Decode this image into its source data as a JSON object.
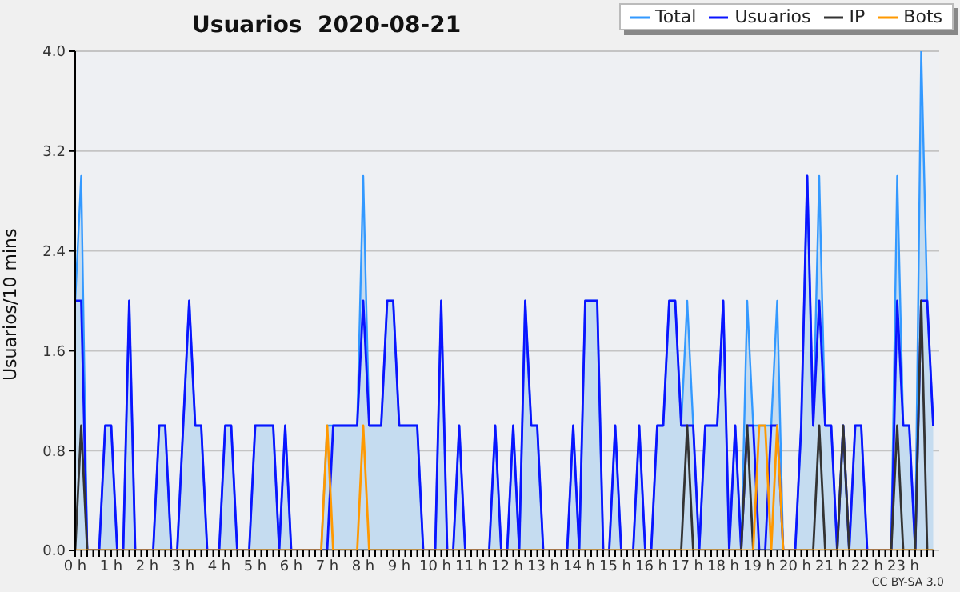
{
  "chart_data": {
    "type": "line",
    "title": "Usuarios  2020-08-21",
    "ylabel": "Usuarios/10 mins",
    "annotations": [
      "CC BY-SA 3.0"
    ],
    "categories": [
      "0 h",
      null,
      null,
      null,
      null,
      null,
      "1 h",
      null,
      null,
      null,
      null,
      null,
      "2 h",
      null,
      null,
      null,
      null,
      null,
      "3 h",
      null,
      null,
      null,
      null,
      null,
      "4 h",
      null,
      null,
      null,
      null,
      null,
      "5 h",
      null,
      null,
      null,
      null,
      null,
      "6 h",
      null,
      null,
      null,
      null,
      null,
      "7 h",
      null,
      null,
      null,
      null,
      null,
      "8 h",
      null,
      null,
      null,
      null,
      null,
      "9 h",
      null,
      null,
      null,
      null,
      null,
      "10 h",
      null,
      null,
      null,
      null,
      null,
      "11 h",
      null,
      null,
      null,
      null,
      null,
      "12 h",
      null,
      null,
      null,
      null,
      null,
      "13 h",
      null,
      null,
      null,
      null,
      null,
      "14 h",
      null,
      null,
      null,
      null,
      null,
      "15 h",
      null,
      null,
      null,
      null,
      null,
      "16 h",
      null,
      null,
      null,
      null,
      null,
      "17 h",
      null,
      null,
      null,
      null,
      null,
      "18 h",
      null,
      null,
      null,
      null,
      null,
      "19 h",
      null,
      null,
      null,
      null,
      null,
      "20 h",
      null,
      null,
      null,
      null,
      null,
      "21 h",
      null,
      null,
      null,
      null,
      null,
      "22 h",
      null,
      null,
      null,
      null,
      null,
      "23 h",
      null,
      null,
      null,
      null,
      null
    ],
    "series": [
      {
        "name": "Total",
        "type": "area",
        "color": "#3399ff",
        "values": [
          2,
          3,
          0,
          0,
          0,
          1,
          1,
          0,
          0,
          2,
          0,
          0,
          0,
          0,
          1,
          1,
          0,
          0,
          1,
          2,
          1,
          1,
          0,
          0,
          0,
          1,
          1,
          0,
          0,
          0,
          1,
          1,
          1,
          1,
          0,
          1,
          0,
          0,
          0,
          0,
          0,
          0,
          1,
          1,
          1,
          1,
          1,
          1,
          3,
          1,
          1,
          1,
          2,
          2,
          1,
          1,
          1,
          1,
          0,
          0,
          0,
          2,
          0,
          0,
          1,
          0,
          0,
          0,
          0,
          0,
          1,
          0,
          0,
          1,
          0,
          2,
          1,
          1,
          0,
          0,
          0,
          0,
          0,
          1,
          0,
          2,
          2,
          2,
          0,
          0,
          1,
          0,
          0,
          0,
          1,
          0,
          0,
          1,
          1,
          2,
          2,
          1,
          2,
          1,
          0,
          1,
          1,
          1,
          2,
          0,
          1,
          0,
          2,
          1,
          1,
          1,
          1,
          2,
          0,
          0,
          0,
          1,
          3,
          1,
          3,
          1,
          1,
          0,
          1,
          0,
          1,
          1,
          0,
          0,
          0,
          0,
          0,
          3,
          1,
          1,
          0,
          4,
          2,
          1
        ]
      },
      {
        "name": "Usuarios",
        "color": "#0a14ff",
        "values": [
          2,
          2,
          0,
          0,
          0,
          1,
          1,
          0,
          0,
          2,
          0,
          0,
          0,
          0,
          1,
          1,
          0,
          0,
          1,
          2,
          1,
          1,
          0,
          0,
          0,
          1,
          1,
          0,
          0,
          0,
          1,
          1,
          1,
          1,
          0,
          1,
          0,
          0,
          0,
          0,
          0,
          0,
          0,
          1,
          1,
          1,
          1,
          1,
          2,
          1,
          1,
          1,
          2,
          2,
          1,
          1,
          1,
          1,
          0,
          0,
          0,
          2,
          0,
          0,
          1,
          0,
          0,
          0,
          0,
          0,
          1,
          0,
          0,
          1,
          0,
          2,
          1,
          1,
          0,
          0,
          0,
          0,
          0,
          1,
          0,
          2,
          2,
          2,
          0,
          0,
          1,
          0,
          0,
          0,
          1,
          0,
          0,
          1,
          1,
          2,
          2,
          1,
          1,
          1,
          0,
          1,
          1,
          1,
          2,
          0,
          1,
          0,
          1,
          1,
          0,
          0,
          1,
          1,
          0,
          0,
          0,
          1,
          3,
          1,
          2,
          1,
          1,
          0,
          1,
          0,
          1,
          1,
          0,
          0,
          0,
          0,
          0,
          2,
          1,
          1,
          0,
          2,
          2,
          1
        ]
      },
      {
        "name": "IP",
        "color": "#333333",
        "values": [
          0,
          1,
          0,
          0,
          0,
          0,
          0,
          0,
          0,
          0,
          0,
          0,
          0,
          0,
          0,
          0,
          0,
          0,
          0,
          0,
          0,
          0,
          0,
          0,
          0,
          0,
          0,
          0,
          0,
          0,
          0,
          0,
          0,
          0,
          0,
          0,
          0,
          0,
          0,
          0,
          0,
          0,
          0,
          0,
          0,
          0,
          0,
          0,
          0,
          0,
          0,
          0,
          0,
          0,
          0,
          0,
          0,
          0,
          0,
          0,
          0,
          0,
          0,
          0,
          0,
          0,
          0,
          0,
          0,
          0,
          0,
          0,
          0,
          0,
          0,
          0,
          0,
          0,
          0,
          0,
          0,
          0,
          0,
          0,
          0,
          0,
          0,
          0,
          0,
          0,
          0,
          0,
          0,
          0,
          0,
          0,
          0,
          0,
          0,
          0,
          0,
          0,
          1,
          0,
          0,
          0,
          0,
          0,
          0,
          0,
          0,
          0,
          1,
          0,
          0,
          0,
          0,
          0,
          0,
          0,
          0,
          0,
          0,
          0,
          1,
          0,
          0,
          0,
          1,
          0,
          0,
          0,
          0,
          0,
          0,
          0,
          0,
          1,
          0,
          0,
          0,
          2,
          0,
          0
        ]
      },
      {
        "name": "Bots",
        "color": "#ff9900",
        "values": [
          0,
          0,
          0,
          0,
          0,
          0,
          0,
          0,
          0,
          0,
          0,
          0,
          0,
          0,
          0,
          0,
          0,
          0,
          0,
          0,
          0,
          0,
          0,
          0,
          0,
          0,
          0,
          0,
          0,
          0,
          0,
          0,
          0,
          0,
          0,
          0,
          0,
          0,
          0,
          0,
          0,
          0,
          1,
          0,
          0,
          0,
          0,
          0,
          1,
          0,
          0,
          0,
          0,
          0,
          0,
          0,
          0,
          0,
          0,
          0,
          0,
          0,
          0,
          0,
          0,
          0,
          0,
          0,
          0,
          0,
          0,
          0,
          0,
          0,
          0,
          0,
          0,
          0,
          0,
          0,
          0,
          0,
          0,
          0,
          0,
          0,
          0,
          0,
          0,
          0,
          0,
          0,
          0,
          0,
          0,
          0,
          0,
          0,
          0,
          0,
          0,
          0,
          0,
          0,
          0,
          0,
          0,
          0,
          0,
          0,
          0,
          0,
          0,
          0,
          1,
          1,
          0,
          1,
          0,
          0,
          0,
          0,
          0,
          0,
          0,
          0,
          0,
          0,
          0,
          0,
          0,
          0,
          0,
          0,
          0,
          0,
          0,
          0,
          0,
          0,
          0,
          0,
          0,
          0
        ]
      }
    ],
    "ylim": [
      0,
      4
    ],
    "yticks": [
      {
        "value": 0,
        "label": "0.0"
      },
      {
        "value": 0.8,
        "label": "0.8"
      },
      {
        "value": 1.6,
        "label": "1.6"
      },
      {
        "value": 2.4,
        "label": "2.4"
      },
      {
        "value": 3.2,
        "label": "3.2"
      },
      {
        "value": 4,
        "label": "4.0"
      }
    ],
    "grid": "y",
    "legend": "top right",
    "marker": "none",
    "line_style": "solid"
  }
}
